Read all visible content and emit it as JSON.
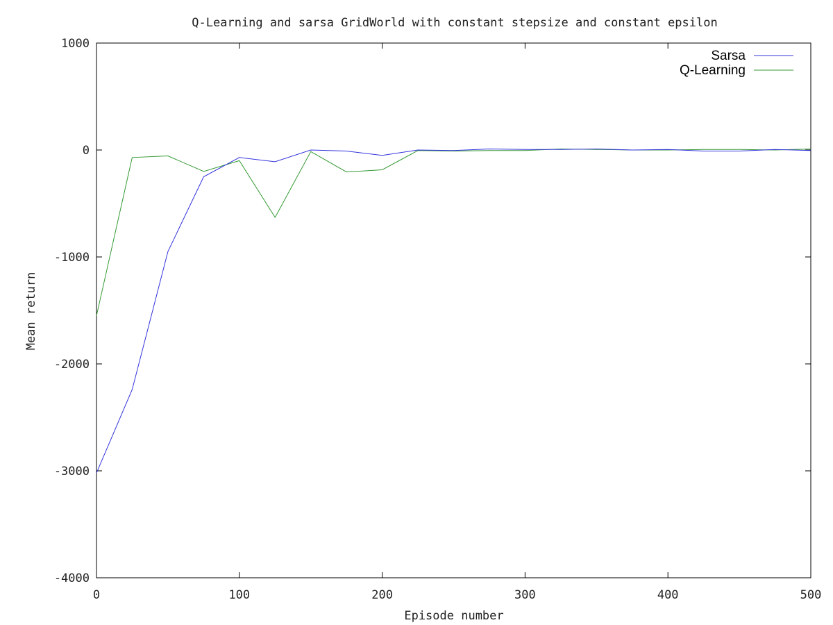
{
  "chart_data": {
    "type": "line",
    "title": "Q-Learning and sarsa GridWorld with constant stepsize and constant epsilon",
    "xlabel": "Episode number",
    "ylabel": "Mean return",
    "xlim": [
      0,
      500
    ],
    "ylim": [
      -4000,
      1000
    ],
    "xticks": [
      0,
      100,
      200,
      300,
      400,
      500
    ],
    "yticks": [
      -4000,
      -3000,
      -2000,
      -1000,
      0,
      1000
    ],
    "xtick_labels": [
      "0",
      "100",
      "200",
      "300",
      "400",
      "500"
    ],
    "ytick_labels": [
      "-4000",
      "-3000",
      "-2000",
      "-1000",
      "0",
      "1000"
    ],
    "grid": false,
    "legend_position": "top-right",
    "x": [
      0,
      25,
      50,
      75,
      100,
      125,
      150,
      175,
      200,
      225,
      250,
      275,
      300,
      325,
      350,
      375,
      400,
      425,
      450,
      475,
      500
    ],
    "series": [
      {
        "name": "Sarsa",
        "color": "#3333dd",
        "values": [
          -3020,
          -2240,
          -950,
          -250,
          -70,
          -110,
          0,
          -10,
          -50,
          0,
          -5,
          10,
          5,
          5,
          10,
          0,
          5,
          -10,
          -10,
          5,
          -5
        ]
      },
      {
        "name": "Q-Learning",
        "color": "#339933",
        "values": [
          -1550,
          -70,
          -55,
          -200,
          -100,
          -630,
          -15,
          -205,
          -185,
          -5,
          -10,
          -5,
          -5,
          10,
          5,
          0,
          0,
          5,
          5,
          0,
          10
        ]
      }
    ]
  }
}
